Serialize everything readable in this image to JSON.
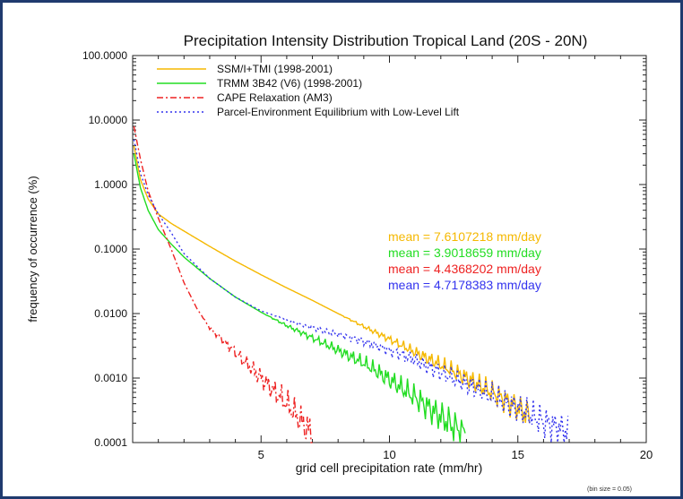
{
  "chart_data": {
    "type": "line",
    "title": "Precipitation Intensity Distribution Tropical Land (20S - 20N)",
    "xlabel": "grid cell precipitation rate (mm/hr)",
    "ylabel": "frequency of occurrence (%)",
    "note": "(bin size = 0.05)",
    "xlim": [
      0,
      20
    ],
    "ylim": [
      0.0001,
      100
    ],
    "yscale": "log",
    "x_ticks": [
      5,
      10,
      15,
      20
    ],
    "x_tick_labels": [
      "5",
      "10",
      "15",
      "20"
    ],
    "y_ticks": [
      100,
      10,
      1,
      0.1,
      0.01,
      0.001,
      0.0001
    ],
    "y_tick_labels": [
      "100.0000",
      "10.0000",
      "1.0000",
      "0.1000",
      "0.0100",
      "0.0010",
      "0.0001"
    ],
    "legend_placement": "top-left",
    "series": [
      {
        "name": "SSM/I+TMI (1998-2001)",
        "color": "#f5b800",
        "dash": "solid",
        "mean_text": "mean = 7.6107218 mm/day",
        "x": [
          0.05,
          0.3,
          0.6,
          1.0,
          1.5,
          2.0,
          3.0,
          4.0,
          5.0,
          6.0,
          7.0,
          8.0,
          9.0,
          10.0,
          11.0,
          12.0,
          13.0,
          14.0,
          15.0,
          15.5
        ],
        "y": [
          4.0,
          1.2,
          0.6,
          0.35,
          0.25,
          0.19,
          0.11,
          0.065,
          0.04,
          0.025,
          0.016,
          0.01,
          0.0063,
          0.004,
          0.0025,
          0.0016,
          0.001,
          0.0006,
          0.00035,
          0.00025
        ]
      },
      {
        "name": "TRMM 3B42 (V6) (1998-2001)",
        "color": "#22dd22",
        "dash": "solid",
        "mean_text": "mean = 3.9018659 mm/day",
        "x": [
          0.05,
          0.3,
          0.6,
          1.0,
          1.5,
          2.0,
          3.0,
          4.0,
          5.0,
          6.0,
          7.0,
          8.0,
          9.0,
          10.0,
          11.0,
          12.0,
          13.0
        ],
        "y": [
          3.0,
          0.9,
          0.4,
          0.2,
          0.12,
          0.075,
          0.035,
          0.018,
          0.0105,
          0.0065,
          0.0042,
          0.0027,
          0.0017,
          0.00095,
          0.0005,
          0.00025,
          0.00013
        ]
      },
      {
        "name": "CAPE Relaxation (AM3)",
        "color": "#ee2222",
        "dash": "dashdot",
        "mean_text": "mean = 4.4368202 mm/day",
        "x": [
          0.05,
          0.3,
          0.6,
          1.0,
          1.5,
          2.0,
          2.5,
          3.0,
          4.0,
          5.0,
          6.0,
          7.0
        ],
        "y": [
          8.0,
          2.5,
          0.8,
          0.3,
          0.1,
          0.03,
          0.012,
          0.006,
          0.0025,
          0.001,
          0.0004,
          0.00013
        ]
      },
      {
        "name": "Parcel-Environment Equilibrium with Low-Level Lift",
        "color": "#3333ee",
        "dash": "dotted",
        "mean_text": "mean = 4.7178383 mm/day",
        "x": [
          0.05,
          0.3,
          0.6,
          1.0,
          1.5,
          2.0,
          3.0,
          4.0,
          5.0,
          6.0,
          7.0,
          8.0,
          9.0,
          10.0,
          11.0,
          12.0,
          13.0,
          14.0,
          15.0,
          16.0,
          17.0
        ],
        "y": [
          5.0,
          1.5,
          0.7,
          0.35,
          0.18,
          0.085,
          0.035,
          0.018,
          0.011,
          0.008,
          0.006,
          0.0048,
          0.0037,
          0.0027,
          0.0019,
          0.0012,
          0.0008,
          0.00052,
          0.00033,
          0.00021,
          0.00014
        ]
      }
    ]
  }
}
